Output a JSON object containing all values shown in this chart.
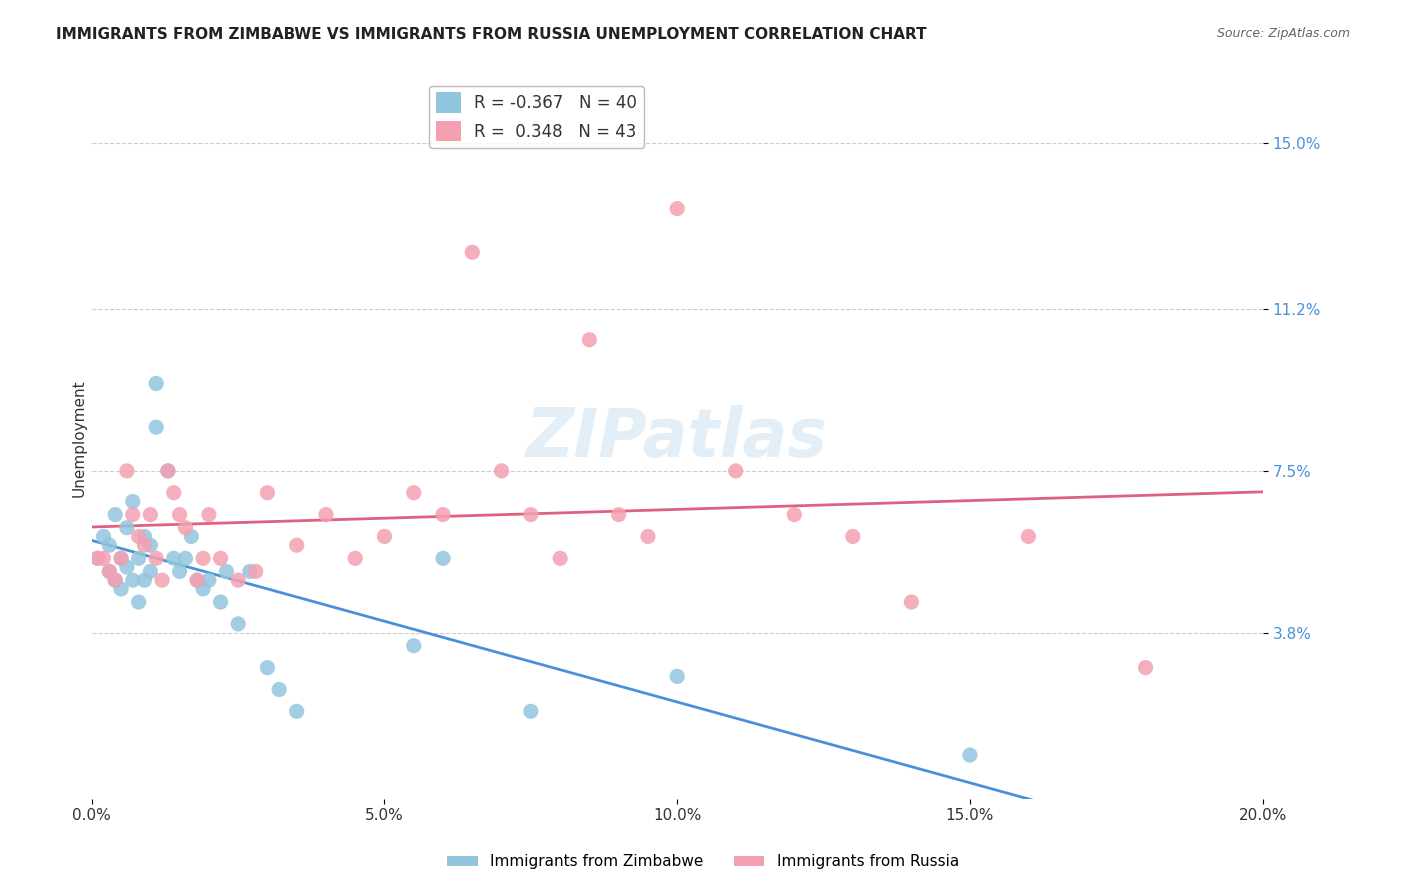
{
  "title": "IMMIGRANTS FROM ZIMBABWE VS IMMIGRANTS FROM RUSSIA UNEMPLOYMENT CORRELATION CHART",
  "source": "Source: ZipAtlas.com",
  "xlabel_ticks": [
    "0.0%",
    "5.0%",
    "10.0%",
    "15.0%",
    "20.0%"
  ],
  "xlabel_tick_vals": [
    0.0,
    5.0,
    10.0,
    15.0,
    20.0
  ],
  "ylabel_ticks": [
    "3.8%",
    "7.5%",
    "11.2%",
    "15.0%"
  ],
  "ylabel_tick_vals": [
    3.8,
    7.5,
    11.2,
    15.0
  ],
  "ylabel": "Unemployment",
  "xlim": [
    0.0,
    20.0
  ],
  "ylim": [
    0.0,
    16.5
  ],
  "legend_r_zimbabwe": "-0.367",
  "legend_n_zimbabwe": "40",
  "legend_r_russia": "0.348",
  "legend_n_russia": "43",
  "color_zimbabwe": "#92c5de",
  "color_russia": "#f4a0b0",
  "color_line_zimbabwe": "#4a90d9",
  "color_line_russia": "#e06080",
  "watermark": "ZIPatlas",
  "zimbabwe_x": [
    0.1,
    0.2,
    0.3,
    0.3,
    0.4,
    0.4,
    0.5,
    0.5,
    0.6,
    0.6,
    0.7,
    0.7,
    0.8,
    0.8,
    0.9,
    0.9,
    1.0,
    1.0,
    1.1,
    1.1,
    1.3,
    1.4,
    1.5,
    1.6,
    1.7,
    1.8,
    1.9,
    2.0,
    2.2,
    2.3,
    2.5,
    2.7,
    3.0,
    3.2,
    3.5,
    5.5,
    6.0,
    7.5,
    10.0,
    15.0
  ],
  "zimbabwe_y": [
    5.5,
    6.0,
    5.2,
    5.8,
    6.5,
    5.0,
    5.5,
    4.8,
    6.2,
    5.3,
    6.8,
    5.0,
    5.5,
    4.5,
    5.0,
    6.0,
    5.2,
    5.8,
    9.5,
    8.5,
    7.5,
    5.5,
    5.2,
    5.5,
    6.0,
    5.0,
    4.8,
    5.0,
    4.5,
    5.2,
    4.0,
    5.2,
    3.0,
    2.5,
    2.0,
    3.5,
    5.5,
    2.0,
    2.8,
    1.0
  ],
  "russia_x": [
    0.1,
    0.2,
    0.3,
    0.4,
    0.5,
    0.6,
    0.7,
    0.8,
    0.9,
    1.0,
    1.1,
    1.2,
    1.3,
    1.4,
    1.5,
    1.6,
    1.8,
    1.9,
    2.0,
    2.2,
    2.5,
    2.8,
    3.0,
    3.5,
    4.0,
    4.5,
    5.0,
    5.5,
    6.0,
    6.5,
    7.0,
    7.5,
    8.0,
    8.5,
    9.0,
    9.5,
    10.0,
    11.0,
    12.0,
    13.0,
    14.0,
    16.0,
    18.0
  ],
  "russia_y": [
    5.5,
    5.5,
    5.2,
    5.0,
    5.5,
    7.5,
    6.5,
    6.0,
    5.8,
    6.5,
    5.5,
    5.0,
    7.5,
    7.0,
    6.5,
    6.2,
    5.0,
    5.5,
    6.5,
    5.5,
    5.0,
    5.2,
    7.0,
    5.8,
    6.5,
    5.5,
    6.0,
    7.0,
    6.5,
    12.5,
    7.5,
    6.5,
    5.5,
    10.5,
    6.5,
    6.0,
    13.5,
    7.5,
    6.5,
    6.0,
    4.5,
    6.0,
    3.0
  ]
}
